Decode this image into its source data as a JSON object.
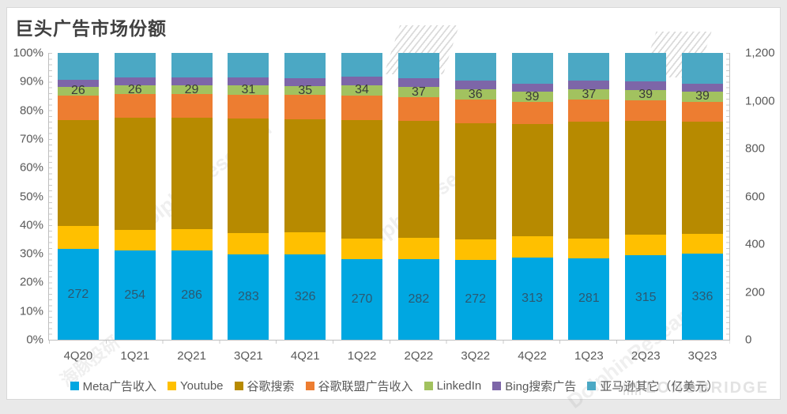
{
  "page": {
    "title": "巨头广告市场份额"
  },
  "watermarks": {
    "dolphin_en": "DolphinResearch",
    "dolphin_cn": "海豚投研",
    "longbridge": "LONGBRIDGE"
  },
  "chart_data": {
    "type": "bar",
    "subtype": "stacked-100-percent",
    "title": "巨头广告市场份额",
    "unit": "亿美元",
    "gridlines": false,
    "legend_position": "bottom",
    "categories": [
      "4Q20",
      "1Q21",
      "2Q21",
      "3Q21",
      "4Q21",
      "1Q22",
      "2Q22",
      "3Q22",
      "4Q22",
      "1Q23",
      "2Q23",
      "3Q23"
    ],
    "series": [
      {
        "name": "Meta广告收入",
        "color": "#00A7E1",
        "show_labels": true,
        "label_color": "#2C5871",
        "values": [
          272,
          254,
          286,
          283,
          326,
          270,
          282,
          272,
          313,
          281,
          315,
          336
        ]
      },
      {
        "name": "Youtube",
        "color": "#FFC000",
        "show_labels": false,
        "values": [
          69,
          60,
          70,
          72,
          86,
          69,
          73,
          71,
          80,
          67,
          77,
          80
        ]
      },
      {
        "name": "谷歌搜索",
        "color": "#B78A00",
        "show_labels": false,
        "values": [
          319,
          319,
          358,
          379,
          433,
          396,
          407,
          395,
          426,
          404,
          426,
          440
        ]
      },
      {
        "name": "谷歌联盟广告收入",
        "color": "#ED7D31",
        "show_labels": false,
        "values": [
          74,
          68,
          76,
          80,
          93,
          82,
          83,
          79,
          85,
          75,
          79,
          77
        ]
      },
      {
        "name": "LinkedIn",
        "color": "#A2C25F",
        "show_labels": true,
        "label_color": "#3A3A3A",
        "values": [
          26,
          26,
          29,
          31,
          35,
          34,
          37,
          36,
          39,
          37,
          39,
          39
        ]
      },
      {
        "name": "Bing搜索广告",
        "color": "#7D66A8",
        "show_labels": false,
        "values": [
          21,
          23,
          25,
          27,
          30,
          29,
          30,
          29,
          32,
          30,
          31,
          31
        ]
      },
      {
        "name": "亚马逊其它（亿美元）",
        "color": "#4BA8C4",
        "show_labels": false,
        "values": [
          80,
          69,
          79,
          81,
          97,
          79,
          88,
          95,
          116,
          95,
          107,
          121
        ]
      }
    ],
    "axes": {
      "left": {
        "ticks": [
          "100%",
          "90%",
          "80%",
          "70%",
          "60%",
          "50%",
          "40%",
          "30%",
          "20%",
          "10%",
          "0%"
        ],
        "range": [
          0,
          100
        ]
      },
      "right": {
        "ticks": [
          "1,200",
          "1,000",
          "800",
          "600",
          "400",
          "200",
          "0"
        ],
        "range": [
          0,
          1200
        ]
      }
    }
  }
}
